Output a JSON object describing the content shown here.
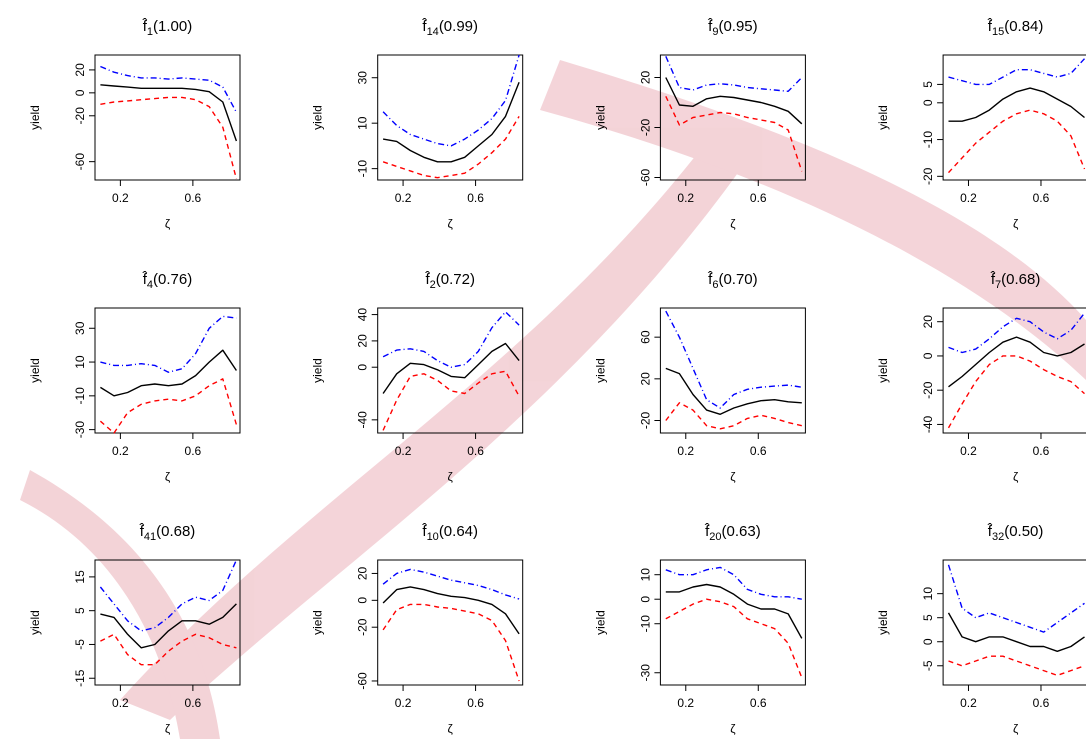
{
  "chart_data": [
    {
      "type": "line",
      "title": {
        "symbol": "f̂",
        "subscript": "1",
        "text": "(1.00)"
      },
      "xlabel": "ζ",
      "ylabel": "yield",
      "x": [
        0.09,
        0.165,
        0.24,
        0.315,
        0.39,
        0.465,
        0.54,
        0.615,
        0.69,
        0.765,
        0.84
      ],
      "xlim": [
        0.06,
        0.86
      ],
      "xticks": [
        0.2,
        0.6
      ],
      "ylim": [
        -76,
        33
      ],
      "yticks": [
        20,
        0,
        -20,
        -60
      ],
      "series": [
        {
          "color": "#000000",
          "linestyle": "solid",
          "values": [
            7,
            6,
            5,
            4,
            4,
            4,
            4,
            3,
            1,
            -8,
            -42
          ]
        },
        {
          "color": "#0000ff",
          "linestyle": "dashdot",
          "values": [
            23,
            18,
            15,
            13,
            13,
            12,
            13,
            12,
            11,
            5,
            -17
          ]
        },
        {
          "color": "#ff0000",
          "linestyle": "dashed",
          "values": [
            -10,
            -8,
            -7,
            -6,
            -5,
            -4,
            -4,
            -6,
            -12,
            -30,
            -75
          ]
        }
      ]
    },
    {
      "type": "line",
      "title": {
        "symbol": "f̂",
        "subscript": "14",
        "text": "(0.99)"
      },
      "xlabel": "ζ",
      "ylabel": "yield",
      "x": [
        0.09,
        0.165,
        0.24,
        0.315,
        0.39,
        0.465,
        0.54,
        0.615,
        0.69,
        0.765,
        0.84
      ],
      "xlim": [
        0.06,
        0.86
      ],
      "xticks": [
        0.2,
        0.6
      ],
      "ylim": [
        -15,
        40
      ],
      "yticks": [
        30,
        10,
        -10
      ],
      "series": [
        {
          "color": "#000000",
          "linestyle": "solid",
          "values": [
            3,
            2,
            -2,
            -5,
            -7,
            -7,
            -5,
            0,
            5,
            13,
            28
          ]
        },
        {
          "color": "#0000ff",
          "linestyle": "dashdot",
          "values": [
            15,
            9,
            5,
            3,
            1,
            0,
            3,
            7,
            12,
            20,
            40
          ]
        },
        {
          "color": "#ff0000",
          "linestyle": "dashed",
          "values": [
            -7,
            -9,
            -11,
            -13,
            -14,
            -13,
            -12,
            -8,
            -3,
            3,
            13
          ]
        }
      ]
    },
    {
      "type": "line",
      "title": {
        "symbol": "f̂",
        "subscript": "9",
        "text": "(0.95)"
      },
      "xlabel": "ζ",
      "ylabel": "yield",
      "x": [
        0.09,
        0.165,
        0.24,
        0.315,
        0.39,
        0.465,
        0.54,
        0.615,
        0.69,
        0.765,
        0.84
      ],
      "xlim": [
        0.06,
        0.86
      ],
      "xticks": [
        0.2,
        0.6
      ],
      "ylim": [
        -62,
        38
      ],
      "yticks": [
        20,
        -20,
        -60
      ],
      "series": [
        {
          "color": "#000000",
          "linestyle": "solid",
          "values": [
            20,
            -2,
            -3,
            3,
            5,
            4,
            2,
            0,
            -3,
            -7,
            -17
          ]
        },
        {
          "color": "#0000ff",
          "linestyle": "dashdot",
          "values": [
            37,
            12,
            10,
            14,
            15,
            14,
            12,
            11,
            10,
            9,
            20
          ]
        },
        {
          "color": "#ff0000",
          "linestyle": "dashed",
          "values": [
            5,
            -18,
            -12,
            -10,
            -8,
            -9,
            -12,
            -14,
            -16,
            -22,
            -55
          ]
        }
      ]
    },
    {
      "type": "line",
      "title": {
        "symbol": "f̂",
        "subscript": "15",
        "text": "(0.84)"
      },
      "xlabel": "ζ",
      "ylabel": "yield",
      "x": [
        0.09,
        0.165,
        0.24,
        0.315,
        0.39,
        0.465,
        0.54,
        0.615,
        0.69,
        0.765,
        0.84
      ],
      "xlim": [
        0.06,
        0.86
      ],
      "xticks": [
        0.2,
        0.6
      ],
      "ylim": [
        -21,
        13
      ],
      "yticks": [
        5,
        0,
        -10,
        -20
      ],
      "series": [
        {
          "color": "#000000",
          "linestyle": "solid",
          "values": [
            -5,
            -5,
            -4,
            -2,
            1,
            3,
            4,
            3,
            1,
            -1,
            -4
          ]
        },
        {
          "color": "#0000ff",
          "linestyle": "dashdot",
          "values": [
            7,
            6,
            5,
            5,
            7,
            9,
            9,
            8,
            7,
            8,
            12
          ]
        },
        {
          "color": "#ff0000",
          "linestyle": "dashed",
          "values": [
            -19,
            -15,
            -11,
            -8,
            -5,
            -3,
            -2,
            -3,
            -5,
            -9,
            -18
          ]
        }
      ]
    },
    {
      "type": "line",
      "title": {
        "symbol": "f̂",
        "subscript": "4",
        "text": "(0.76)"
      },
      "xlabel": "ζ",
      "ylabel": "yield",
      "x": [
        0.09,
        0.165,
        0.24,
        0.315,
        0.39,
        0.465,
        0.54,
        0.615,
        0.69,
        0.765,
        0.84
      ],
      "xlim": [
        0.06,
        0.86
      ],
      "xticks": [
        0.2,
        0.6
      ],
      "ylim": [
        -32,
        42
      ],
      "yticks": [
        30,
        10,
        -10,
        -30
      ],
      "series": [
        {
          "color": "#000000",
          "linestyle": "solid",
          "values": [
            -5,
            -10,
            -8,
            -4,
            -3,
            -4,
            -3,
            2,
            10,
            17,
            5
          ]
        },
        {
          "color": "#0000ff",
          "linestyle": "dashdot",
          "values": [
            10,
            8,
            8,
            9,
            8,
            4,
            6,
            15,
            30,
            37,
            36
          ]
        },
        {
          "color": "#ff0000",
          "linestyle": "dashed",
          "values": [
            -25,
            -32,
            -20,
            -15,
            -13,
            -12,
            -13,
            -10,
            -4,
            0,
            -27
          ]
        }
      ]
    },
    {
      "type": "line",
      "title": {
        "symbol": "f̂",
        "subscript": "2",
        "text": "(0.72)"
      },
      "xlabel": "ζ",
      "ylabel": "yield",
      "x": [
        0.09,
        0.165,
        0.24,
        0.315,
        0.39,
        0.465,
        0.54,
        0.615,
        0.69,
        0.765,
        0.84
      ],
      "xlim": [
        0.06,
        0.86
      ],
      "xticks": [
        0.2,
        0.6
      ],
      "ylim": [
        -50,
        45
      ],
      "yticks": [
        40,
        20,
        0,
        -40
      ],
      "series": [
        {
          "color": "#000000",
          "linestyle": "solid",
          "values": [
            -20,
            -5,
            3,
            2,
            -2,
            -7,
            -8,
            2,
            12,
            18,
            5
          ]
        },
        {
          "color": "#0000ff",
          "linestyle": "dashdot",
          "values": [
            8,
            13,
            14,
            12,
            5,
            0,
            2,
            12,
            30,
            42,
            32
          ]
        },
        {
          "color": "#ff0000",
          "linestyle": "dashed",
          "values": [
            -48,
            -25,
            -7,
            -5,
            -10,
            -18,
            -20,
            -12,
            -5,
            -3,
            -22
          ]
        }
      ]
    },
    {
      "type": "line",
      "title": {
        "symbol": "f̂",
        "subscript": "6",
        "text": "(0.70)"
      },
      "xlabel": "ζ",
      "ylabel": "yield",
      "x": [
        0.09,
        0.165,
        0.24,
        0.315,
        0.39,
        0.465,
        0.54,
        0.615,
        0.69,
        0.765,
        0.84
      ],
      "xlim": [
        0.06,
        0.86
      ],
      "xticks": [
        0.2,
        0.6
      ],
      "ylim": [
        -32,
        88
      ],
      "yticks": [
        60,
        20,
        -20
      ],
      "series": [
        {
          "color": "#000000",
          "linestyle": "solid",
          "values": [
            30,
            25,
            5,
            -10,
            -14,
            -8,
            -4,
            -1,
            0,
            -2,
            -3
          ]
        },
        {
          "color": "#0000ff",
          "linestyle": "dashdot",
          "values": [
            85,
            60,
            30,
            0,
            -8,
            5,
            10,
            12,
            13,
            14,
            12
          ]
        },
        {
          "color": "#ff0000",
          "linestyle": "dashed",
          "values": [
            -20,
            -3,
            -10,
            -25,
            -28,
            -25,
            -18,
            -15,
            -18,
            -22,
            -25
          ]
        }
      ]
    },
    {
      "type": "line",
      "title": {
        "symbol": "f̂",
        "subscript": "7",
        "text": "(0.68)"
      },
      "xlabel": "ζ",
      "ylabel": "yield",
      "x": [
        0.09,
        0.165,
        0.24,
        0.315,
        0.39,
        0.465,
        0.54,
        0.615,
        0.69,
        0.765,
        0.84
      ],
      "xlim": [
        0.06,
        0.86
      ],
      "xticks": [
        0.2,
        0.6
      ],
      "ylim": [
        -45,
        28
      ],
      "yticks": [
        20,
        0,
        -20,
        -40
      ],
      "series": [
        {
          "color": "#000000",
          "linestyle": "solid",
          "values": [
            -18,
            -12,
            -5,
            2,
            8,
            11,
            8,
            2,
            0,
            2,
            7
          ]
        },
        {
          "color": "#0000ff",
          "linestyle": "dashdot",
          "values": [
            5,
            2,
            4,
            10,
            17,
            22,
            20,
            14,
            10,
            15,
            25
          ]
        },
        {
          "color": "#ff0000",
          "linestyle": "dashed",
          "values": [
            -42,
            -28,
            -15,
            -5,
            0,
            0,
            -3,
            -8,
            -12,
            -15,
            -22
          ]
        }
      ]
    },
    {
      "type": "line",
      "title": {
        "symbol": "f̂",
        "subscript": "41",
        "text": "(0.68)"
      },
      "xlabel": "ζ",
      "ylabel": "yield",
      "x": [
        0.09,
        0.165,
        0.24,
        0.315,
        0.39,
        0.465,
        0.54,
        0.615,
        0.69,
        0.765,
        0.84
      ],
      "xlim": [
        0.06,
        0.86
      ],
      "xticks": [
        0.2,
        0.6
      ],
      "ylim": [
        -17,
        20
      ],
      "yticks": [
        15,
        5,
        -5,
        -15
      ],
      "series": [
        {
          "color": "#000000",
          "linestyle": "solid",
          "values": [
            4,
            3,
            -2,
            -6,
            -5,
            -1,
            2,
            2,
            1,
            3,
            7
          ]
        },
        {
          "color": "#0000ff",
          "linestyle": "dashdot",
          "values": [
            12,
            7,
            2,
            -1,
            0,
            3,
            7,
            9,
            8,
            11,
            20
          ]
        },
        {
          "color": "#ff0000",
          "linestyle": "dashed",
          "values": [
            -4,
            -2,
            -8,
            -11,
            -11,
            -7,
            -4,
            -2,
            -3,
            -5,
            -6
          ]
        }
      ]
    },
    {
      "type": "line",
      "title": {
        "symbol": "f̂",
        "subscript": "10",
        "text": "(0.64)"
      },
      "xlabel": "ζ",
      "ylabel": "yield",
      "x": [
        0.09,
        0.165,
        0.24,
        0.315,
        0.39,
        0.465,
        0.54,
        0.615,
        0.69,
        0.765,
        0.84
      ],
      "xlim": [
        0.06,
        0.86
      ],
      "xticks": [
        0.2,
        0.6
      ],
      "ylim": [
        -63,
        30
      ],
      "yticks": [
        20,
        0,
        -20,
        -60
      ],
      "series": [
        {
          "color": "#000000",
          "linestyle": "solid",
          "values": [
            -2,
            8,
            10,
            8,
            5,
            3,
            2,
            0,
            -3,
            -10,
            -25
          ]
        },
        {
          "color": "#0000ff",
          "linestyle": "dashdot",
          "values": [
            12,
            20,
            23,
            21,
            18,
            15,
            13,
            11,
            8,
            4,
            1
          ]
        },
        {
          "color": "#ff0000",
          "linestyle": "dashed",
          "values": [
            -22,
            -7,
            -3,
            -3,
            -5,
            -6,
            -8,
            -10,
            -15,
            -30,
            -60
          ]
        }
      ]
    },
    {
      "type": "line",
      "title": {
        "symbol": "f̂",
        "subscript": "20",
        "text": "(0.63)"
      },
      "xlabel": "ζ",
      "ylabel": "yield",
      "x": [
        0.09,
        0.165,
        0.24,
        0.315,
        0.39,
        0.465,
        0.54,
        0.615,
        0.69,
        0.765,
        0.84
      ],
      "xlim": [
        0.06,
        0.86
      ],
      "xticks": [
        0.2,
        0.6
      ],
      "ylim": [
        -35,
        16
      ],
      "yticks": [
        10,
        0,
        -10,
        -30
      ],
      "series": [
        {
          "color": "#000000",
          "linestyle": "solid",
          "values": [
            3,
            3,
            5,
            6,
            5,
            2,
            -2,
            -4,
            -4,
            -6,
            -16
          ]
        },
        {
          "color": "#0000ff",
          "linestyle": "dashdot",
          "values": [
            12,
            10,
            10,
            12,
            13,
            10,
            4,
            2,
            1,
            1,
            0
          ]
        },
        {
          "color": "#ff0000",
          "linestyle": "dashed",
          "values": [
            -8,
            -5,
            -2,
            0,
            -1,
            -3,
            -8,
            -10,
            -12,
            -18,
            -32
          ]
        }
      ]
    },
    {
      "type": "line",
      "title": {
        "symbol": "f̂",
        "subscript": "32",
        "text": "(0.50)"
      },
      "xlabel": "ζ",
      "ylabel": "yield",
      "x": [
        0.09,
        0.165,
        0.24,
        0.315,
        0.39,
        0.465,
        0.54,
        0.615,
        0.69,
        0.765,
        0.84
      ],
      "xlim": [
        0.06,
        0.86
      ],
      "xticks": [
        0.2,
        0.6
      ],
      "ylim": [
        -9,
        17
      ],
      "yticks": [
        10,
        5,
        0,
        -5
      ],
      "series": [
        {
          "color": "#000000",
          "linestyle": "solid",
          "values": [
            6,
            1,
            0,
            1,
            1,
            0,
            -1,
            -1,
            -2,
            -1,
            1
          ]
        },
        {
          "color": "#0000ff",
          "linestyle": "dashdot",
          "values": [
            16,
            7,
            5,
            6,
            5,
            4,
            3,
            2,
            4,
            6,
            8
          ]
        },
        {
          "color": "#ff0000",
          "linestyle": "dashed",
          "values": [
            -4,
            -5,
            -4,
            -3,
            -3,
            -4,
            -5,
            -6,
            -7,
            -6,
            -5
          ]
        }
      ]
    }
  ]
}
